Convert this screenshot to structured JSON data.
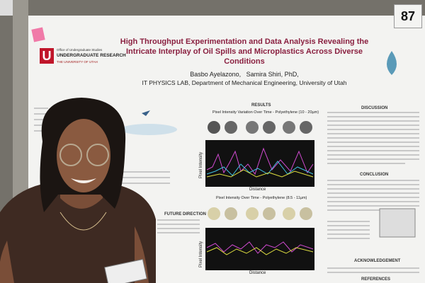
{
  "tag_number": "87",
  "logo": {
    "office": "Office of Undergraduate Studies",
    "program": "UNDERGRADUATE RESEARCH",
    "university": "THE UNIVERSITY OF UTAH"
  },
  "poster": {
    "title": "High Throughput Experimentation and Data Analysis Revealing the Intricate Interplay of Oil Spills and Microplastics Across Diverse Conditions",
    "authors": "Basbo Ayelazono,   Samira Shiri, PhD,",
    "affiliation": "IT PHYSICS LAB, Department of Mechanical Engineering, University of Utah",
    "sections": {
      "results": "RESULTS",
      "discussion": "DISCUSSION",
      "conclusion": "CONCLUSION",
      "future": "FUTURE DIRECTION",
      "acknowledgement": "ACKNOWLEDGEMENT",
      "references": "REFERENCES"
    },
    "plots": [
      {
        "title": "Pixel Intensity Variation Over Time - Polyethylene (10 - 20µm)",
        "x_label": "Distance",
        "y_label": "Pixel Intensity"
      },
      {
        "title": "Pixel Intensity Over Time - Polyethylene (8.5 - 11µm)",
        "x_label": "Distance",
        "y_label": "Pixel Intensity"
      }
    ]
  }
}
